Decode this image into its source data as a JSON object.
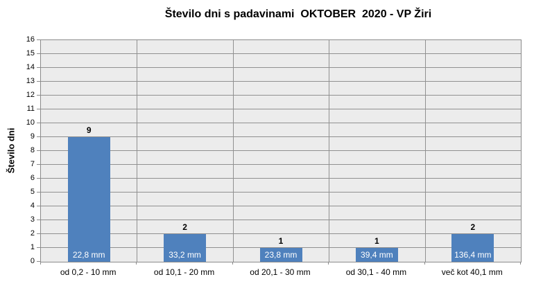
{
  "chart_data": {
    "type": "bar",
    "title": "Število dni s padavinami  OKTOBER  2020 - VP Žiri",
    "ylabel": "Število dni",
    "xlabel": "",
    "categories": [
      "od 0,2 - 10 mm",
      "od 10,1 - 20 mm",
      "od 20,1 - 30 mm",
      "od 30,1 - 40 mm",
      "več kot 40,1 mm"
    ],
    "values": [
      9,
      2,
      1,
      1,
      2
    ],
    "value_labels": [
      "9",
      "2",
      "1",
      "1",
      "2"
    ],
    "bar_data_labels": [
      "22,8 mm",
      "33,2 mm",
      "23,8 mm",
      "39,4 mm",
      "136,4 mm"
    ],
    "ylim": [
      0,
      16
    ],
    "ytick_step": 1,
    "grid": true,
    "legend_position": "none",
    "colors": {
      "bar": "#4F81BD",
      "plot_background": "#ECECEC",
      "gridline": "#909090",
      "axis": "#8A8A8A",
      "text": "#000000",
      "bar_label_text": "#FFFFFF",
      "page_background": "#FFFFFF"
    }
  }
}
